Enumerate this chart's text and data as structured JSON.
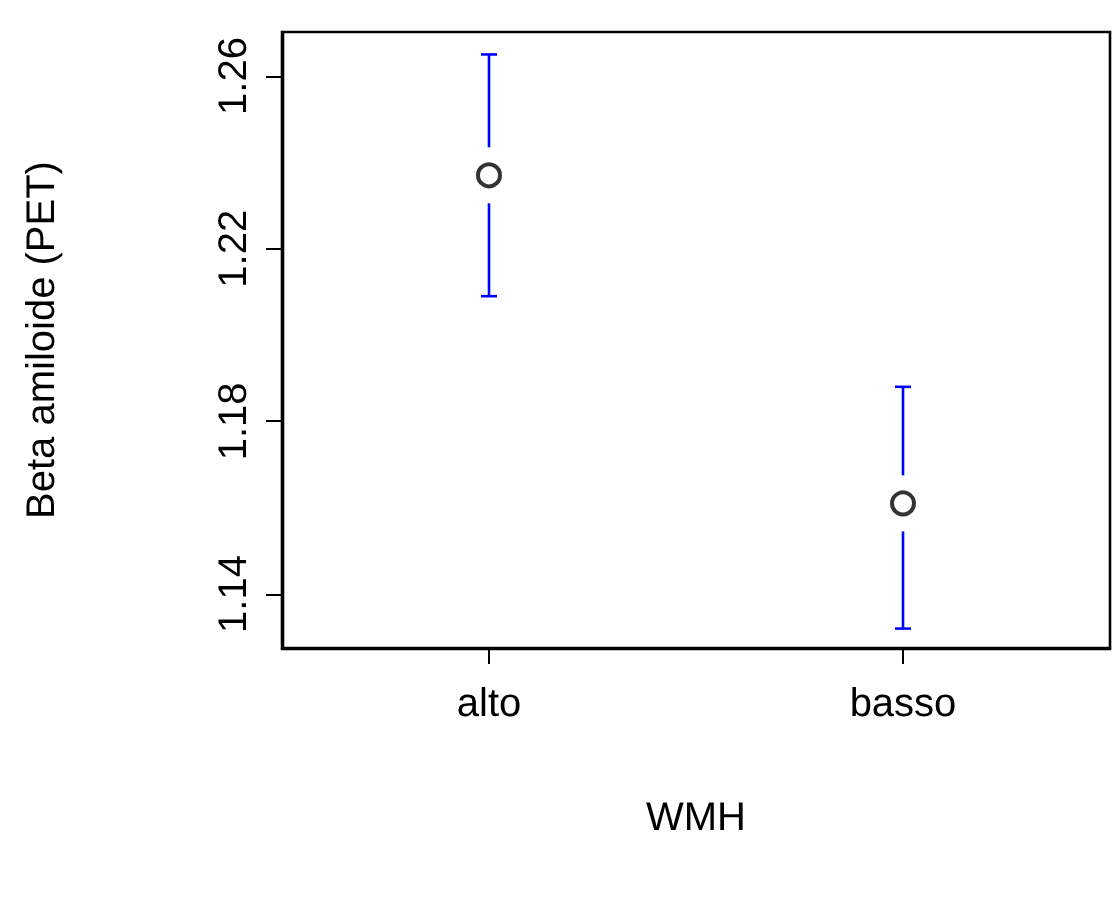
{
  "chart_data": {
    "type": "scatter",
    "xlabel": "WMH",
    "ylabel": "Beta amiloide (PET)",
    "categories": [
      "alto",
      "basso"
    ],
    "series": [
      {
        "color": "#000000",
        "values": [
          1.237,
          1.161
        ],
        "errors": [
          [
            1.209,
            1.265
          ],
          [
            1.132,
            1.188
          ]
        ]
      }
    ],
    "ylim": [
      1.1275,
      1.2702
    ],
    "yticks": [
      1.14,
      1.18,
      1.22,
      1.26
    ],
    "grid": false,
    "marker": "circle"
  }
}
